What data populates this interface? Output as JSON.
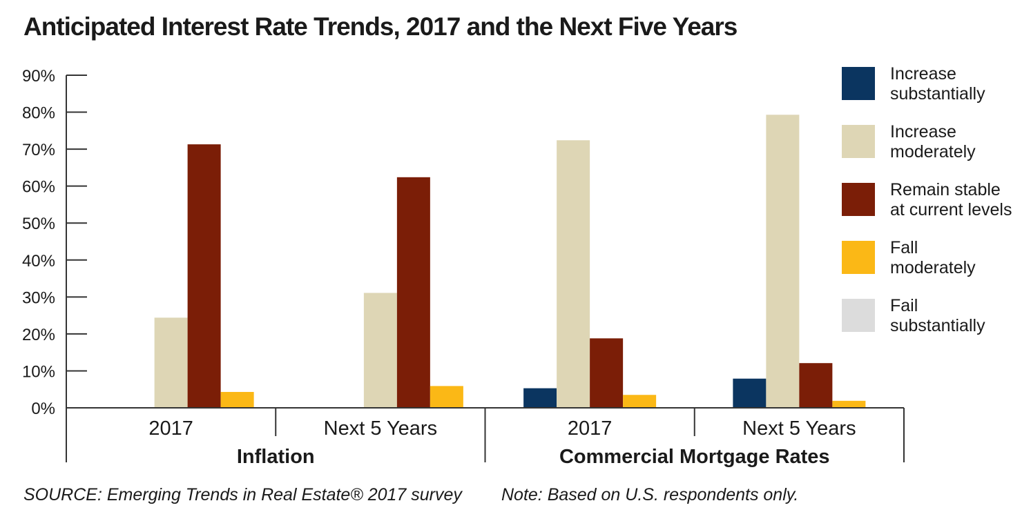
{
  "title": "Anticipated Interest Rate Trends, 2017 and the Next Five Years",
  "source": "SOURCE: Emerging Trends in Real Estate® 2017 survey",
  "note": "Note: Based on U.S. respondents only.",
  "legend": [
    {
      "line1": "Increase",
      "line2": "substantially",
      "color": "#0b3560"
    },
    {
      "line1": "Increase",
      "line2": "moderately",
      "color": "#ded6b5"
    },
    {
      "line1": "Remain stable",
      "line2": "at current levels",
      "color": "#7b1e07"
    },
    {
      "line1": "Fall",
      "line2": "moderately",
      "color": "#fbb816"
    },
    {
      "line1": "Fail",
      "line2": "substantially",
      "color": "#dcdcdc"
    }
  ],
  "chart_data": {
    "type": "bar",
    "title": "Anticipated Interest Rate Trends, 2017 and the Next Five Years",
    "ylim": [
      0,
      90
    ],
    "y_ticks": [
      "0%",
      "10%",
      "20%",
      "30%",
      "40%",
      "50%",
      "60%",
      "70%",
      "80%",
      "90%"
    ],
    "groups": [
      "Inflation",
      "Commercial Mortgage Rates"
    ],
    "categories": [
      "2017",
      "Next 5 Years",
      "2017",
      "Next 5 Years"
    ],
    "category_group": [
      0,
      0,
      1,
      1
    ],
    "series": [
      {
        "name": "Increase substantially",
        "color": "#0b3560",
        "values": [
          0,
          0,
          5.3,
          7.9
        ]
      },
      {
        "name": "Increase moderately",
        "color": "#ded6b5",
        "values": [
          24.4,
          31.1,
          72.4,
          79.3
        ]
      },
      {
        "name": "Remain stable at current levels",
        "color": "#7b1e07",
        "values": [
          71.3,
          62.4,
          18.8,
          12.1
        ]
      },
      {
        "name": "Fall moderately",
        "color": "#fbb816",
        "values": [
          4.3,
          5.9,
          3.5,
          1.9
        ]
      },
      {
        "name": "Fail substantially",
        "color": "#dcdcdc",
        "values": [
          0,
          0,
          0,
          0
        ]
      }
    ],
    "grid": false,
    "legend_position": "right"
  }
}
